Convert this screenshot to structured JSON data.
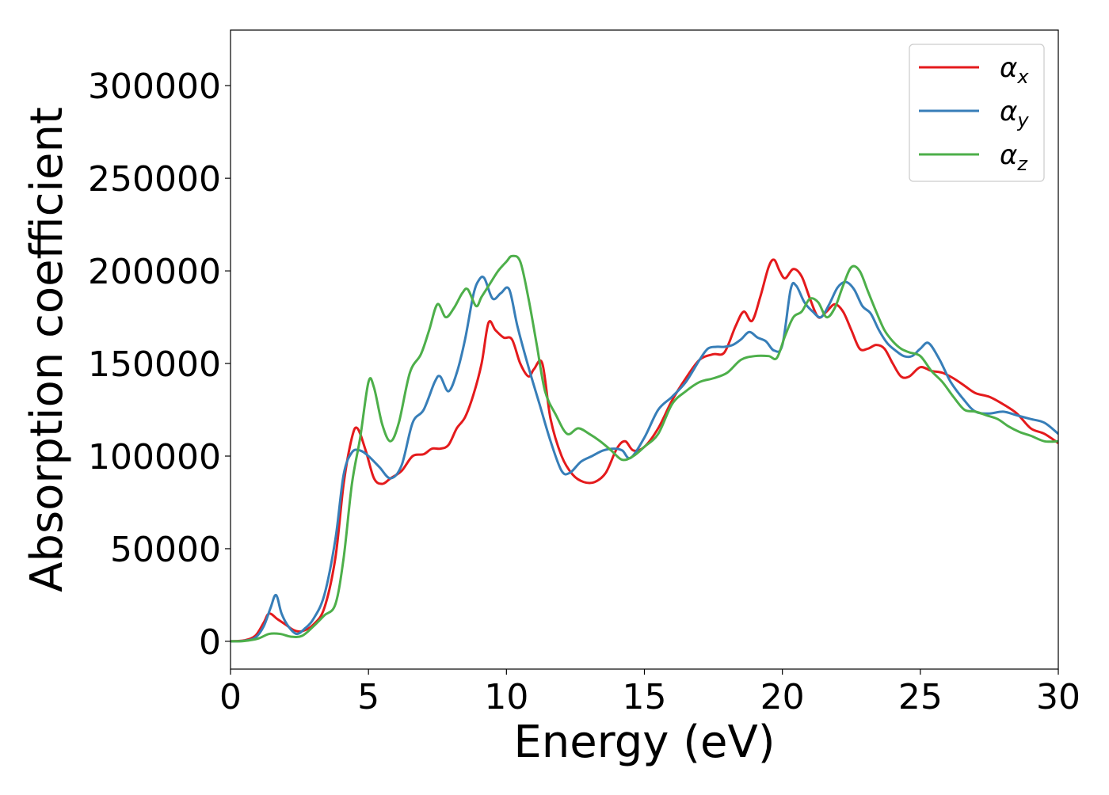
{
  "chart_data": {
    "type": "line",
    "title": "",
    "xlabel": "Energy (eV)",
    "ylabel": "Absorption coefficient",
    "xlim": [
      0,
      30
    ],
    "ylim": [
      -15000,
      330000
    ],
    "xticks": [
      0,
      5,
      10,
      15,
      20,
      25,
      30
    ],
    "yticks": [
      0,
      50000,
      100000,
      150000,
      200000,
      250000,
      300000
    ],
    "grid": false,
    "legend_position": "top-right",
    "series": [
      {
        "name": "αx",
        "legend_main": "α",
        "legend_sub": "x",
        "color": "#e41a1c",
        "x": [
          0,
          0.5,
          0.9,
          1.2,
          1.4,
          1.7,
          2.0,
          2.3,
          2.6,
          3.0,
          3.4,
          3.8,
          4.1,
          4.4,
          4.6,
          4.9,
          5.2,
          5.5,
          5.8,
          6.2,
          6.6,
          7.0,
          7.3,
          7.6,
          7.9,
          8.2,
          8.5,
          8.8,
          9.1,
          9.35,
          9.6,
          9.9,
          10.2,
          10.5,
          10.8,
          11.0,
          11.3,
          11.6,
          12.0,
          12.4,
          12.8,
          13.2,
          13.6,
          14.0,
          14.3,
          14.6,
          15.0,
          15.5,
          16.0,
          16.5,
          17.0,
          17.5,
          17.9,
          18.3,
          18.6,
          18.9,
          19.2,
          19.5,
          19.7,
          19.9,
          20.1,
          20.4,
          20.7,
          21.0,
          21.3,
          21.6,
          21.9,
          22.2,
          22.5,
          22.8,
          23.1,
          23.4,
          23.7,
          24.0,
          24.3,
          24.6,
          25.0,
          25.4,
          25.8,
          26.2,
          26.6,
          27.0,
          27.5,
          28.0,
          28.5,
          29.0,
          29.5,
          30.0
        ],
        "y": [
          0,
          500,
          3000,
          10000,
          15000,
          12000,
          9000,
          6000,
          5500,
          9000,
          18000,
          45000,
          85000,
          110000,
          115000,
          103000,
          88000,
          85000,
          88000,
          92000,
          100000,
          101000,
          104000,
          104000,
          106000,
          115000,
          121000,
          133000,
          150000,
          172000,
          168000,
          164000,
          163000,
          150000,
          143000,
          147000,
          150000,
          120000,
          100000,
          90000,
          86000,
          86000,
          91000,
          104000,
          108000,
          103000,
          105000,
          115000,
          130000,
          142000,
          152000,
          155000,
          156000,
          170000,
          178000,
          173000,
          186000,
          202000,
          206000,
          200000,
          196000,
          201000,
          197000,
          185000,
          175000,
          178000,
          182000,
          178000,
          168000,
          158000,
          158000,
          160000,
          158000,
          150000,
          143000,
          143000,
          148000,
          146000,
          145000,
          142000,
          138000,
          134000,
          132000,
          128000,
          123000,
          115000,
          112000,
          107000
        ]
      },
      {
        "name": "αy",
        "legend_main": "α",
        "legend_sub": "y",
        "color": "#377eb8",
        "x": [
          0,
          0.5,
          0.9,
          1.2,
          1.45,
          1.65,
          1.85,
          2.1,
          2.4,
          2.7,
          3.0,
          3.4,
          3.8,
          4.1,
          4.4,
          4.7,
          5.0,
          5.4,
          5.8,
          6.2,
          6.6,
          7.0,
          7.4,
          7.6,
          7.9,
          8.2,
          8.5,
          8.8,
          9.0,
          9.2,
          9.5,
          9.8,
          10.1,
          10.4,
          10.8,
          11.2,
          11.6,
          12.0,
          12.3,
          12.7,
          13.1,
          13.5,
          13.9,
          14.2,
          14.5,
          15.0,
          15.5,
          16.0,
          16.5,
          17.0,
          17.3,
          17.6,
          17.9,
          18.2,
          18.5,
          18.8,
          19.1,
          19.4,
          19.7,
          20.0,
          20.3,
          20.5,
          20.8,
          21.1,
          21.4,
          21.7,
          22.0,
          22.3,
          22.6,
          22.9,
          23.2,
          23.5,
          23.8,
          24.1,
          24.4,
          24.7,
          25.0,
          25.3,
          25.7,
          26.1,
          26.6,
          27.0,
          27.5,
          28.0,
          28.5,
          29.0,
          29.5,
          30.0
        ],
        "y": [
          0,
          300,
          2000,
          8000,
          18000,
          25000,
          15000,
          8000,
          4000,
          7000,
          12000,
          25000,
          55000,
          90000,
          102000,
          103000,
          100000,
          94000,
          88000,
          95000,
          118000,
          125000,
          140000,
          143000,
          135000,
          145000,
          163000,
          187000,
          195000,
          196000,
          185000,
          188000,
          190000,
          170000,
          148000,
          128000,
          108000,
          92000,
          91000,
          97000,
          100000,
          103000,
          104000,
          103000,
          99000,
          110000,
          125000,
          132000,
          140000,
          152000,
          158000,
          159000,
          159000,
          160000,
          163000,
          167000,
          164000,
          162000,
          157000,
          160000,
          190000,
          192000,
          183000,
          178000,
          175000,
          182000,
          191000,
          194000,
          190000,
          181000,
          177000,
          168000,
          161000,
          157000,
          154000,
          154000,
          158000,
          161000,
          152000,
          140000,
          130000,
          124000,
          123000,
          124000,
          122000,
          120000,
          118000,
          112000
        ]
      },
      {
        "name": "αz",
        "legend_main": "α",
        "legend_sub": "z",
        "color": "#4daf4a",
        "x": [
          0,
          0.5,
          1.0,
          1.4,
          1.8,
          2.2,
          2.6,
          3.0,
          3.4,
          3.8,
          4.1,
          4.4,
          4.7,
          5.0,
          5.2,
          5.5,
          5.8,
          6.1,
          6.5,
          6.9,
          7.2,
          7.5,
          7.8,
          8.1,
          8.4,
          8.6,
          8.9,
          9.1,
          9.4,
          9.7,
          10.0,
          10.2,
          10.5,
          10.8,
          11.1,
          11.4,
          11.8,
          12.2,
          12.6,
          13.0,
          13.4,
          13.8,
          14.2,
          14.6,
          15.0,
          15.5,
          16.0,
          16.5,
          17.0,
          17.5,
          18.0,
          18.5,
          19.0,
          19.5,
          19.8,
          20.1,
          20.4,
          20.7,
          21.0,
          21.3,
          21.6,
          21.9,
          22.2,
          22.5,
          22.8,
          23.1,
          23.4,
          23.7,
          24.0,
          24.3,
          24.6,
          25.0,
          25.4,
          25.8,
          26.2,
          26.6,
          27.0,
          27.4,
          27.8,
          28.2,
          28.6,
          29.0,
          29.5,
          30.0
        ],
        "y": [
          0,
          200,
          1500,
          4000,
          4000,
          2500,
          3000,
          8000,
          14000,
          20000,
          45000,
          85000,
          110000,
          140000,
          137000,
          117000,
          108000,
          118000,
          145000,
          155000,
          168000,
          182000,
          175000,
          180000,
          188000,
          190000,
          181000,
          186000,
          193000,
          200000,
          205000,
          208000,
          205000,
          185000,
          160000,
          135000,
          122000,
          112000,
          115000,
          112000,
          108000,
          103000,
          98000,
          100000,
          105000,
          112000,
          128000,
          135000,
          140000,
          142000,
          145000,
          152000,
          154000,
          154000,
          153000,
          165000,
          175000,
          178000,
          185000,
          183000,
          175000,
          180000,
          192000,
          202000,
          200000,
          189000,
          178000,
          168000,
          162000,
          158000,
          156000,
          154000,
          146000,
          140000,
          132000,
          125000,
          124000,
          122000,
          120000,
          116000,
          113000,
          111000,
          108000,
          108000
        ]
      }
    ]
  }
}
